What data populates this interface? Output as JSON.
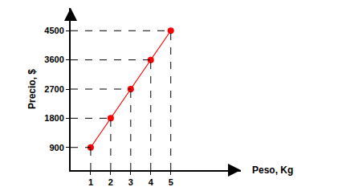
{
  "chart_data": {
    "type": "line",
    "x_label": "Peso, Kg",
    "y_label": "Precio, $",
    "x": [
      1,
      2,
      3,
      4,
      5
    ],
    "values": [
      900,
      1800,
      2700,
      3600,
      4500
    ],
    "color": "#ff0000",
    "marker": "circle",
    "line_style": "solid",
    "xlim": [
      0,
      8.5
    ],
    "ylim": [
      200,
      5200
    ],
    "xticks": [
      1,
      2,
      3,
      4,
      5
    ],
    "yticks": [
      900,
      1800,
      2700,
      3600,
      4500
    ],
    "grid": false
  }
}
